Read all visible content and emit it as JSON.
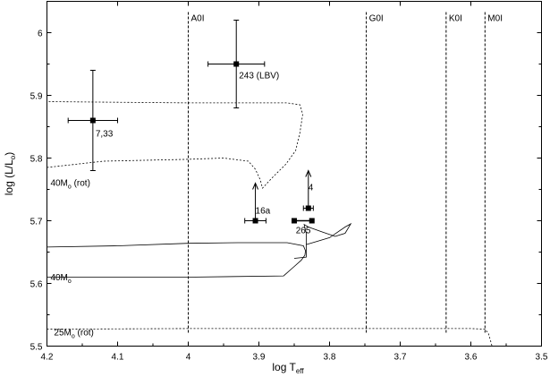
{
  "chart_data": {
    "type": "scatter",
    "title": "",
    "xlabel": "log T",
    "xlabel_sub": "eff",
    "ylabel": "log (L/L",
    "ylabel_sub": "o",
    "ylabel_close": ")",
    "xlim": [
      4.2,
      3.5
    ],
    "ylim": [
      5.5,
      6.05
    ],
    "x_reversed": true,
    "grid": false,
    "x_ticks": [
      4.2,
      4.1,
      4.0,
      3.9,
      3.8,
      3.7,
      3.6,
      3.5
    ],
    "x_tick_labels": [
      "4.2",
      "4.1",
      "4",
      "3.9",
      "3.8",
      "3.7",
      "3.6",
      "3.5"
    ],
    "y_ticks": [
      5.5,
      5.6,
      5.7,
      5.8,
      5.9,
      6.0
    ],
    "y_tick_labels": [
      "5.5",
      "5.6",
      "5.7",
      "5.8",
      "5.9",
      "6"
    ],
    "spectral_lines": [
      {
        "label": "A0I",
        "x": 4.0
      },
      {
        "label": "G0I",
        "x": 3.748
      },
      {
        "label": "K0I",
        "x": 3.635
      },
      {
        "label": "M0I",
        "x": 3.58
      }
    ],
    "points": [
      {
        "label": "243 (LBV)",
        "x": 3.932,
        "y": 5.95,
        "xerr": 0.04,
        "yerr": 0.07
      },
      {
        "label": "7,33",
        "x": 4.135,
        "y": 5.86,
        "xerr": 0.035,
        "yerr": 0.08
      },
      {
        "label": "16a",
        "x": 3.905,
        "y": 5.7,
        "xerr": 0.015,
        "arrow_up": true
      },
      {
        "label": "4",
        "x": 3.83,
        "y": 5.72,
        "xerr": 0.007,
        "arrow_up": true
      },
      {
        "label": "265",
        "x": 3.825,
        "y": 5.7,
        "connect_to_x": 3.85
      }
    ],
    "tracks": [
      {
        "label": "40M",
        "label_sub": "o",
        "label_suffix": " (rot)",
        "style": "dashed",
        "points": [
          [
            4.2,
            5.785
          ],
          [
            4.12,
            5.795
          ],
          [
            4.0,
            5.798
          ],
          [
            3.95,
            5.8
          ],
          [
            3.915,
            5.795
          ],
          [
            3.905,
            5.782
          ],
          [
            3.898,
            5.765
          ],
          [
            3.895,
            5.752
          ],
          [
            3.88,
            5.77
          ],
          [
            3.862,
            5.79
          ],
          [
            3.848,
            5.812
          ],
          [
            3.842,
            5.84
          ],
          [
            3.838,
            5.87
          ],
          [
            3.842,
            5.885
          ],
          [
            3.86,
            5.888
          ],
          [
            4.0,
            5.888
          ],
          [
            4.2,
            5.89
          ]
        ]
      },
      {
        "label": "40M",
        "label_sub": "o",
        "label_suffix": "",
        "style": "solid",
        "points": [
          [
            4.2,
            5.658
          ],
          [
            4.1,
            5.66
          ],
          [
            4.0,
            5.664
          ],
          [
            3.93,
            5.665
          ],
          [
            3.86,
            5.665
          ],
          [
            3.837,
            5.66
          ],
          [
            3.834,
            5.652
          ],
          [
            3.835,
            5.645
          ],
          [
            3.84,
            5.637
          ],
          [
            3.852,
            5.625
          ],
          [
            3.865,
            5.612
          ],
          [
            4.0,
            5.61
          ],
          [
            4.2,
            5.61
          ]
        ]
      },
      {
        "label": "",
        "label_sub": "",
        "label_suffix": "",
        "style": "solid",
        "points": [
          [
            3.85,
            5.64
          ],
          [
            3.833,
            5.642
          ],
          [
            3.833,
            5.68
          ],
          [
            3.836,
            5.694
          ],
          [
            3.83,
            5.69
          ],
          [
            3.81,
            5.682
          ],
          [
            3.792,
            5.675
          ],
          [
            3.778,
            5.68
          ],
          [
            3.77,
            5.695
          ],
          [
            3.778,
            5.69
          ],
          [
            3.8,
            5.673
          ],
          [
            3.818,
            5.667
          ],
          [
            3.833,
            5.662
          ]
        ]
      },
      {
        "label": "25M",
        "label_sub": "o",
        "label_suffix": " (rot)",
        "style": "dashed",
        "points": [
          [
            4.2,
            5.527
          ],
          [
            4.0,
            5.528
          ],
          [
            3.8,
            5.528
          ],
          [
            3.6,
            5.528
          ],
          [
            3.58,
            5.527
          ],
          [
            3.575,
            5.52
          ],
          [
            3.57,
            5.5
          ]
        ]
      }
    ]
  }
}
